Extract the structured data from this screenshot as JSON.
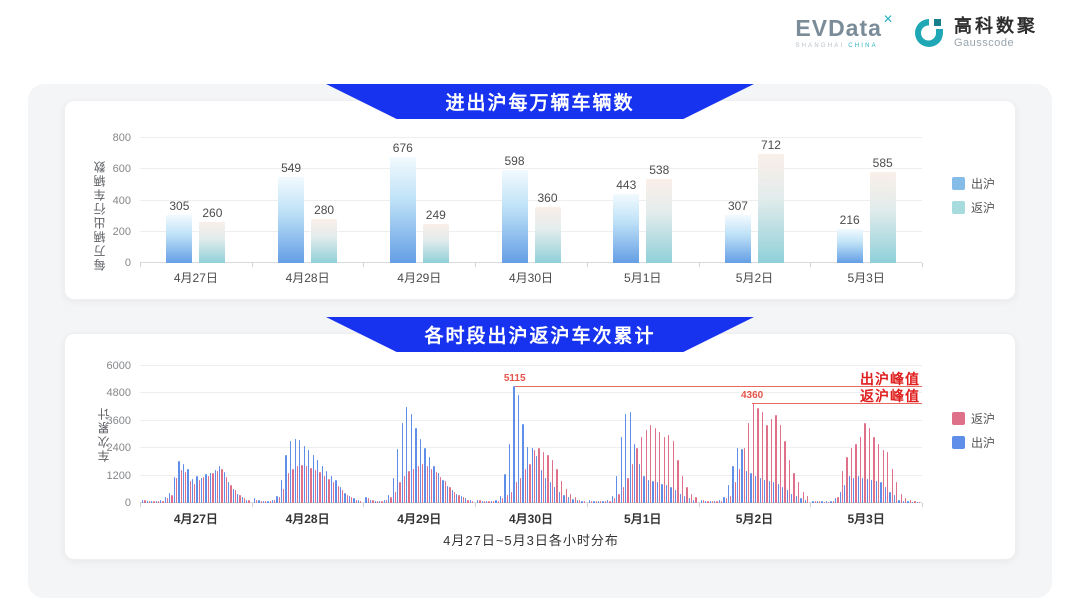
{
  "logo": {
    "brand": "EVData",
    "brand_sup": "✕",
    "brand_sub_1": "SHANGHAI ",
    "brand_sub_2": "CHINA",
    "partner_cn": "高科数聚",
    "partner_en": "Gausscode",
    "partner_icon_color": "#1fa7b5"
  },
  "colors": {
    "banner_blue": "#1733f0",
    "annotation_red": "#e01f1f",
    "annotation_line_red": "#e8695f"
  },
  "chart_data": [
    {
      "type": "bar",
      "title": "进出沪每万辆车辆数",
      "ylabel": "每万辆出行车辆数",
      "xlabel": "",
      "categories": [
        "4月27日",
        "4月28日",
        "4月29日",
        "4月30日",
        "5月1日",
        "5月2日",
        "5月3日"
      ],
      "ylim": [
        0,
        800
      ],
      "yticks": [
        0,
        200,
        400,
        600,
        800
      ],
      "grid": true,
      "legend_position": "right",
      "series": [
        {
          "name": "出沪",
          "values": [
            305,
            549,
            676,
            598,
            443,
            307,
            216
          ],
          "gradient": [
            "#f2fafe",
            "#bfe2f7",
            "#649ee5"
          ],
          "legend_color": "#85bce8"
        },
        {
          "name": "返沪",
          "values": [
            260,
            280,
            249,
            360,
            538,
            712,
            585
          ],
          "gradient": [
            "#faefe9",
            "#e3ecec",
            "#8fd0d9"
          ],
          "legend_color": "#a8dbde"
        }
      ],
      "legend": [
        {
          "label": "出沪",
          "color": "#85bce8"
        },
        {
          "label": "返沪",
          "color": "#a8dbde"
        }
      ]
    },
    {
      "type": "bar",
      "title": "各时段出沪返沪车次累计",
      "ylabel": "车次累计",
      "xlabel": "4月27日~5月3日各小时分布",
      "categories": [
        "4月27日",
        "4月28日",
        "4月29日",
        "4月30日",
        "5月1日",
        "5月2日",
        "5月3日"
      ],
      "hours_per_day": 24,
      "ylim": [
        0,
        6000
      ],
      "yticks": [
        0,
        1200,
        2400,
        3600,
        4800,
        6000
      ],
      "grid": true,
      "legend_position": "right",
      "series": [
        {
          "name": "出沪",
          "color": "#5e8ee8",
          "days": [
            [
              150,
              100,
              80,
              80,
              120,
              250,
              450,
              1150,
              1850,
              1700,
              1500,
              1050,
              1200,
              1100,
              1250,
              1300,
              1450,
              1600,
              1350,
              900,
              600,
              400,
              250,
              150
            ],
            [
              200,
              120,
              100,
              100,
              150,
              300,
              1000,
              2100,
              2700,
              2800,
              2750,
              2500,
              2300,
              2100,
              1900,
              1600,
              1400,
              1200,
              1000,
              700,
              450,
              300,
              200,
              150
            ],
            [
              250,
              150,
              100,
              100,
              150,
              350,
              1100,
              2350,
              3500,
              4200,
              3900,
              3300,
              2800,
              2400,
              2000,
              1600,
              1300,
              1000,
              750,
              550,
              400,
              300,
              200,
              120
            ],
            [
              150,
              100,
              80,
              80,
              120,
              300,
              1250,
              2600,
              5115,
              4750,
              3450,
              2450,
              2400,
              2050,
              1450,
              1100,
              900,
              700,
              500,
              350,
              250,
              180,
              120,
              100
            ],
            [
              120,
              90,
              80,
              80,
              120,
              300,
              1200,
              2900,
              3900,
              4000,
              2600,
              1700,
              1200,
              1000,
              950,
              900,
              850,
              800,
              700,
              550,
              400,
              300,
              200,
              150
            ],
            [
              150,
              100,
              80,
              80,
              120,
              250,
              800,
              1600,
              2400,
              2350,
              1400,
              1300,
              1200,
              1100,
              1000,
              950,
              900,
              850,
              700,
              550,
              400,
              300,
              200,
              150
            ],
            [
              100,
              80,
              70,
              70,
              100,
              200,
              500,
              800,
              1200,
              1100,
              1200,
              1100,
              1050,
              1000,
              950,
              900,
              700,
              500,
              350,
              150,
              100,
              80,
              60,
              50
            ]
          ]
        },
        {
          "name": "返沪",
          "color": "#df7089",
          "days": [
            [
              120,
              90,
              70,
              70,
              100,
              200,
              350,
              1100,
              1450,
              1350,
              950,
              850,
              1000,
              1150,
              1200,
              1300,
              1400,
              1500,
              1150,
              800,
              550,
              350,
              200,
              120
            ],
            [
              150,
              100,
              80,
              80,
              120,
              250,
              600,
              1300,
              1500,
              1600,
              1650,
              1600,
              1550,
              1450,
              1350,
              1200,
              1050,
              900,
              750,
              550,
              350,
              250,
              150,
              100
            ],
            [
              200,
              120,
              90,
              90,
              120,
              250,
              500,
              900,
              1200,
              1400,
              1500,
              1600,
              1700,
              1600,
              1500,
              1350,
              1150,
              950,
              700,
              500,
              350,
              250,
              150,
              100
            ],
            [
              120,
              90,
              70,
              70,
              100,
              200,
              350,
              500,
              900,
              1100,
              1500,
              1700,
              2300,
              2400,
              2250,
              2100,
              1900,
              1500,
              950,
              600,
              400,
              250,
              150,
              100
            ],
            [
              100,
              80,
              70,
              70,
              100,
              200,
              400,
              700,
              1100,
              1700,
              2400,
              2900,
              3200,
              3400,
              3300,
              3100,
              2900,
              3000,
              2700,
              1900,
              1200,
              700,
              400,
              250
            ],
            [
              120,
              90,
              70,
              70,
              100,
              200,
              300,
              900,
              1500,
              2400,
              3500,
              4360,
              4150,
              4000,
              3400,
              3700,
              3850,
              3400,
              2700,
              1900,
              1300,
              900,
              500,
              300
            ],
            [
              80,
              70,
              60,
              60,
              90,
              250,
              1400,
              2000,
              2400,
              2600,
              2900,
              3500,
              3300,
              2900,
              2600,
              2300,
              2250,
              1500,
              900,
              400,
              200,
              120,
              80,
              60
            ]
          ]
        }
      ],
      "legend": [
        {
          "label": "返沪",
          "color": "#df7089"
        },
        {
          "label": "出沪",
          "color": "#5e8ee8"
        }
      ],
      "annotations": [
        {
          "name": "出沪峰值",
          "value": 5115,
          "value_label": "5115",
          "day": 3,
          "hour": 8
        },
        {
          "name": "返沪峰值",
          "value": 4360,
          "value_label": "4360",
          "day": 5,
          "hour": 11
        }
      ]
    }
  ]
}
